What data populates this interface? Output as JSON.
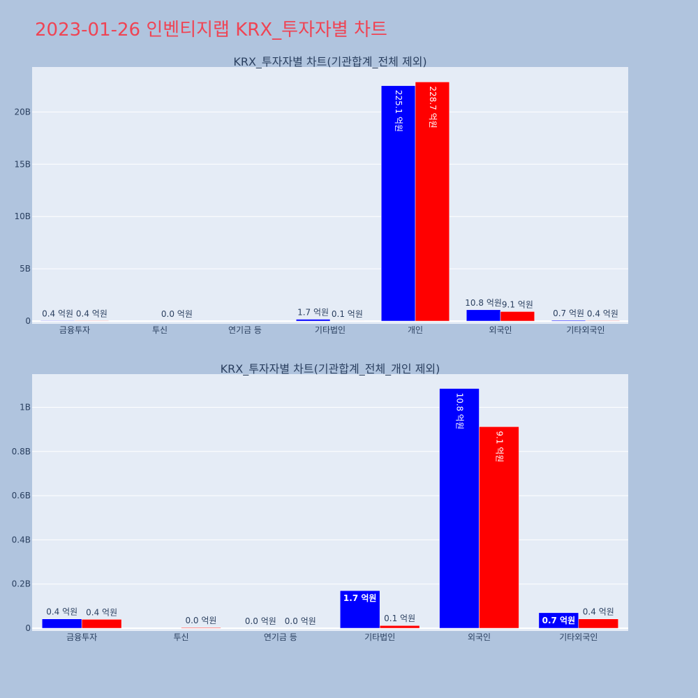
{
  "page_title": "2023-01-26 인벤티지랩 KRX_투자자별 차트",
  "colors": {
    "series_a": "#0000ff",
    "series_b": "#ff0000",
    "plot_bg": "#e5ecf6",
    "page_bg": "#b0c4de",
    "title": "#ef4454"
  },
  "chart_data": [
    {
      "type": "bar",
      "title": "KRX_투자자별 차트(기관합계_전체 제외)",
      "categories": [
        "금융투자",
        "투신",
        "연기금 등",
        "기타법인",
        "개인",
        "외국인",
        "기타외국인"
      ],
      "series": [
        {
          "values": [
            42000000,
            0,
            0,
            170000000,
            22510000000,
            1080000000,
            70000000
          ],
          "labels": [
            "0.4 억원",
            "",
            "",
            "1.7 억원",
            "225.1 억원",
            "10.8 억원",
            "0.7 억원"
          ]
        },
        {
          "values": [
            40000000,
            3000000,
            0,
            12000000,
            22870000000,
            910000000,
            42000000
          ],
          "labels": [
            "0.4 억원",
            "0.0 억원",
            "",
            "0.1 억원",
            "228.7 억원",
            "9.1 억원",
            "0.4 억원"
          ]
        }
      ],
      "yticks": [
        0,
        5000000000,
        10000000000,
        15000000000,
        20000000000
      ],
      "ytick_labels": [
        "0",
        "5B",
        "10B",
        "15B",
        "20B"
      ],
      "ylim": [
        0,
        24300000000
      ]
    },
    {
      "type": "bar",
      "title": "KRX_투자자별 차트(기관합계_전체_개인 제외)",
      "categories": [
        "금융투자",
        "투신",
        "연기금 등",
        "기타법인",
        "외국인",
        "기타외국인"
      ],
      "series": [
        {
          "values": [
            42000000,
            0,
            0,
            170000000,
            1085000000,
            70000000
          ],
          "labels": [
            "0.4 억원",
            "",
            "0.0 억원",
            "1.7 억원",
            "10.8 억원",
            "0.7 억원"
          ]
        },
        {
          "values": [
            40000000,
            3000000,
            0,
            12000000,
            912000000,
            42000000
          ],
          "labels": [
            "0.4 억원",
            "0.0 억원",
            "0.0 억원",
            "0.1 억원",
            "9.1 억원",
            "0.4 억원"
          ]
        }
      ],
      "yticks": [
        0,
        200000000,
        400000000,
        600000000,
        800000000,
        1000000000
      ],
      "ytick_labels": [
        "0",
        "0.2B",
        "0.4B",
        "0.6B",
        "0.8B",
        "1B"
      ],
      "ylim": [
        0,
        1150000000
      ]
    }
  ]
}
